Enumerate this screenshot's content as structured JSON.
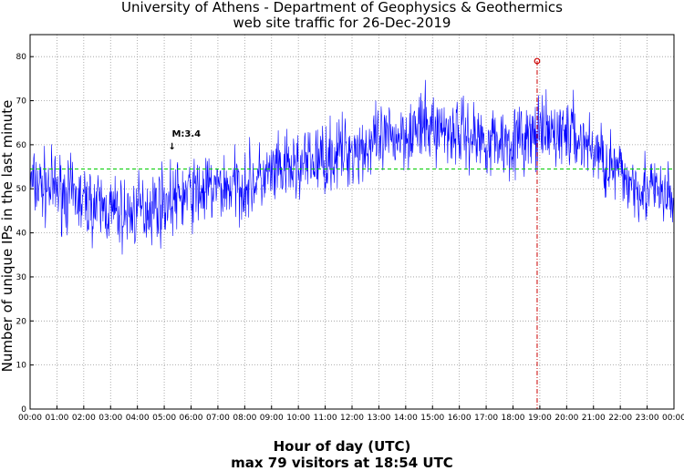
{
  "chart_data": {
    "type": "line",
    "title": "University of Athens - Department of Geophysics & Geothermics",
    "subtitle": "web site traffic for 26-Dec-2019",
    "xlabel": "Hour of day (UTC)",
    "ylabel": "Number of unique IPs in the last minute",
    "footer": "max 79 visitors at 18:54 UTC",
    "xlim": [
      0,
      24
    ],
    "ylim": [
      0,
      85
    ],
    "x_ticks": [
      "00:00",
      "01:00",
      "02:00",
      "03:00",
      "04:00",
      "05:00",
      "06:00",
      "07:00",
      "08:00",
      "09:00",
      "10:00",
      "11:00",
      "12:00",
      "13:00",
      "14:00",
      "15:00",
      "16:00",
      "17:00",
      "18:00",
      "19:00",
      "20:00",
      "21:00",
      "22:00",
      "23:00",
      "00:00"
    ],
    "y_ticks": [
      0,
      10,
      20,
      30,
      40,
      50,
      60,
      70,
      80
    ],
    "grid": true,
    "series": [
      {
        "color": "#0000ff",
        "trend_hours": [
          0,
          1,
          2,
          3,
          3.5,
          4,
          5,
          6,
          7,
          8,
          9,
          10,
          11,
          12,
          13,
          14,
          15,
          16,
          17,
          18,
          19,
          20,
          21,
          22,
          23,
          24
        ],
        "trend_values": [
          51,
          50,
          47,
          45,
          44,
          45,
          47,
          49,
          50,
          51,
          53,
          55,
          57,
          59,
          60,
          63,
          64,
          63,
          61,
          61,
          62,
          63,
          59,
          53,
          50,
          47
        ],
        "noise_amplitude": 4
      }
    ],
    "mean_line": {
      "value": 54.5,
      "color": "#00cc00"
    },
    "max_marker": {
      "hour": 18.9,
      "value": 79,
      "color": "#cc0000"
    },
    "event_annotation": {
      "label": "M:3.4",
      "hour": 5.25,
      "symbol": "↓"
    },
    "colors": {
      "series": "#0000ff",
      "mean": "#00cc00",
      "max": "#cc0000",
      "grid": "#9a9a9a"
    }
  }
}
